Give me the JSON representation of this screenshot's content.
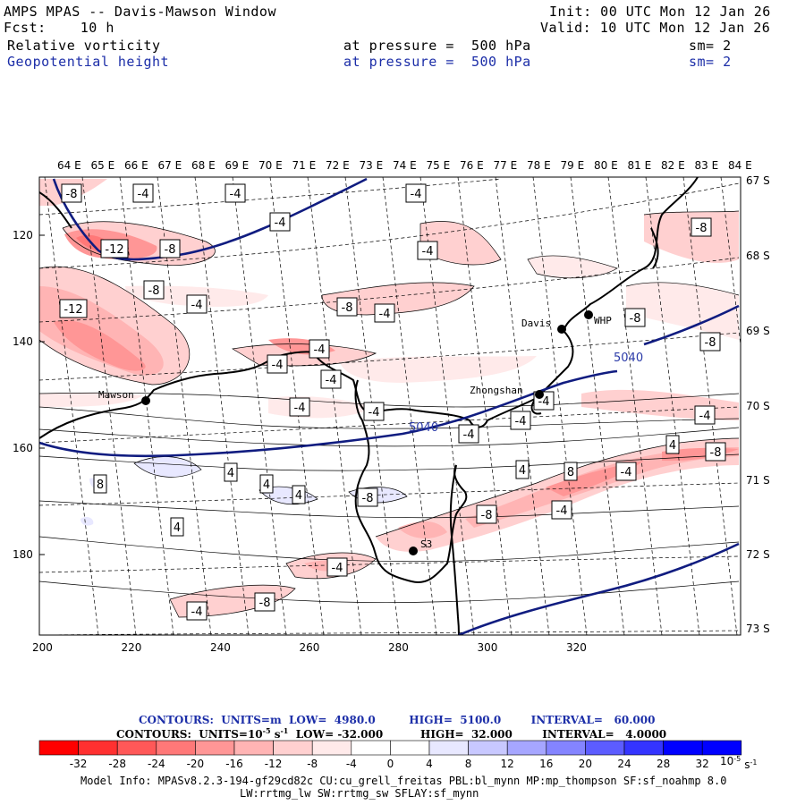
{
  "header": {
    "title": "AMPS MPAS -- Davis-Mawson Window",
    "forecast": "Fcst:    10 h",
    "init": "Init: 00 UTC Mon 12 Jan 26",
    "valid": "Valid: 10 UTC Mon 12 Jan 26",
    "field1": {
      "name": "Relative vorticity",
      "level": "at pressure =  500 hPa",
      "smooth": "sm= 2"
    },
    "field2": {
      "name": "Geopotential height",
      "level": "at pressure =  500 hPa",
      "smooth": "sm= 2"
    }
  },
  "map": {
    "lon_labels": [
      "64 E",
      "65 E",
      "66 E",
      "67 E",
      "68 E",
      "69 E",
      "70 E",
      "71 E",
      "72 E",
      "73 E",
      "74 E",
      "75 E",
      "76 E",
      "77 E",
      "78 E",
      "79 E",
      "80 E",
      "81 E",
      "82 E",
      "83 E",
      "84 E"
    ],
    "lat_labels": [
      "67 S",
      "68 S",
      "69 S",
      "70 S",
      "71 S",
      "72 S",
      "73 S"
    ],
    "x_ticks": [
      "200",
      "220",
      "240",
      "260",
      "280",
      "300",
      "320"
    ],
    "y_ticks": [
      "120",
      "140",
      "160",
      "180"
    ],
    "stations": [
      "Mawson",
      "Davis",
      "WHP",
      "Zhongshan",
      "S3"
    ],
    "height_labels": [
      "5040",
      "5040"
    ],
    "vorticity_labels": [
      "-8",
      "-4",
      "-4",
      "-4",
      "-4",
      "-12",
      "-8",
      "-4",
      "-8",
      "-12",
      "-8",
      "-4",
      "-8",
      "-4",
      "-8",
      "-8",
      "-4",
      "-4",
      "-4",
      "-4",
      "-4",
      "-4",
      "-4",
      "-4",
      "4",
      "4",
      "4",
      "4",
      "8",
      "-8",
      "4",
      "8",
      "4",
      "-8",
      "-4",
      "-4",
      "-8",
      "-4",
      "-8",
      "-4",
      "-4"
    ]
  },
  "footer": {
    "contours1": "CONTOURS:  UNITS=m  LOW=  4980.0         HIGH=  5100.0        INTERVAL=   60.000",
    "contours2_prefix": "CONTOURS:  UNITS=10",
    "contours2_exp": "-5",
    "contours2_mid": " s",
    "contours2_exp2": "-1",
    "contours2_rest": "  LOW= -32.000          HIGH=  32.000        INTERVAL=   4.0000",
    "colorbar_labels": [
      "-32",
      "-28",
      "-24",
      "-20",
      "-16",
      "-12",
      "-8",
      "-4",
      "0",
      "4",
      "8",
      "12",
      "16",
      "20",
      "24",
      "28",
      "32"
    ],
    "colorbar_unit_base": "10",
    "colorbar_unit_exp": "-5",
    "colorbar_unit_s": "s",
    "colorbar_unit_exp2": "-1",
    "colorbar_colors": [
      "#ff0000",
      "#ff3030",
      "#ff5858",
      "#ff7878",
      "#ff9696",
      "#ffb4b4",
      "#ffd0d0",
      "#ffeaea",
      "#ffffff",
      "#ffffff",
      "#e8e8ff",
      "#c8c8ff",
      "#a6a6ff",
      "#8484ff",
      "#5c5cff",
      "#3434ff",
      "#0000ff",
      "#0000ff"
    ],
    "model_info1": "Model Info: MPASv8.2.3-194-gf29cd82c CU:cu_grell_freitas PBL:bl_mynn MP:mp_thompson SF:sf_noahmp 8.0",
    "model_info2": "LW:rrtmg_lw SW:rrtmg_sw SFLAY:sf_mynn"
  }
}
